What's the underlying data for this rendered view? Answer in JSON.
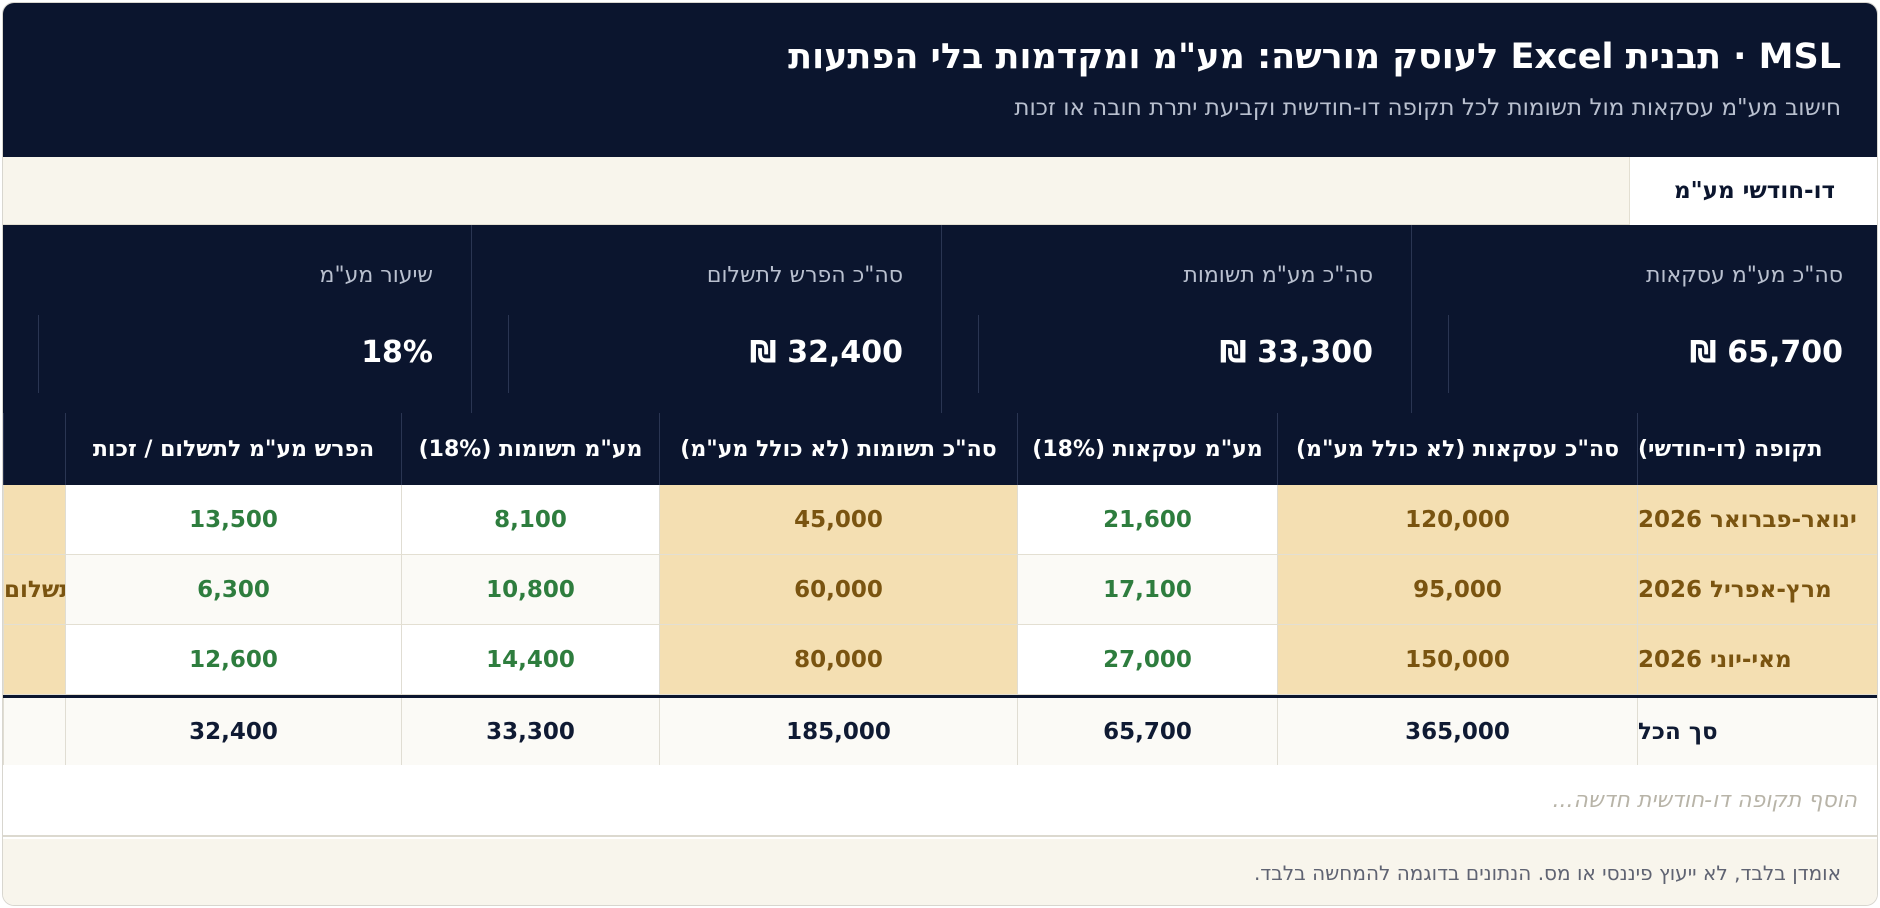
{
  "header": {
    "title": "MSL · תבנית Excel לעוסק מורשה: מע\"מ ומקדמות בלי הפתעות",
    "subtitle": "חישוב מע\"מ עסקאות מול תשומות לכל תקופה דו-חודשית וקביעת יתרת חובה או זכות"
  },
  "tabs": [
    {
      "label": "דו-חודשי מע\"מ",
      "active": true
    }
  ],
  "summary": [
    {
      "label": "סה\"כ מע\"מ עסקאות",
      "value": "65,700 ₪"
    },
    {
      "label": "סה\"כ מע\"מ תשומות",
      "value": "33,300 ₪"
    },
    {
      "label": "סה\"כ הפרש לתשלום",
      "value": "32,400 ₪"
    },
    {
      "label": "שיעור מע\"מ",
      "value": "18%"
    }
  ],
  "table": {
    "headers": [
      "תקופה (דו-חודשי)",
      "סה\"כ עסקאות (לא כולל מע\"מ)",
      "מע\"מ עסקאות (18%)",
      "סה\"כ תשומות (לא כולל מע\"מ)",
      "מע\"מ תשומות (18%)",
      "הפרש מע\"מ לתשלום / זכות",
      ""
    ],
    "rows": [
      [
        "ינואר-פברואר 2026",
        "120,000",
        "21,600",
        "45,000",
        "8,100",
        "13,500",
        ""
      ],
      [
        "מרץ-אפריל 2026",
        "95,000",
        "17,100",
        "60,000",
        "10,800",
        "6,300",
        "לתשלום"
      ],
      [
        "מאי-יוני 2026",
        "150,000",
        "27,000",
        "80,000",
        "14,400",
        "12,600",
        ""
      ]
    ],
    "total": [
      "סך הכל",
      "365,000",
      "65,700",
      "185,000",
      "33,300",
      "32,400",
      ""
    ],
    "add_row_placeholder": "הוסף תקופה דו-חודשית חדשה..."
  },
  "footer": {
    "disclaimer": "אומדן בלבד, לא ייעוץ פיננסי או מס. הנתונים בדוגמה להמחשה בלבד."
  },
  "colors": {
    "header_bg": "#0b152e",
    "input_cell_bg": "#f4dfb2",
    "input_text": "#7a5410",
    "calc_text": "#2e7d3e",
    "tab_bar_bg": "#f8f5ec"
  }
}
